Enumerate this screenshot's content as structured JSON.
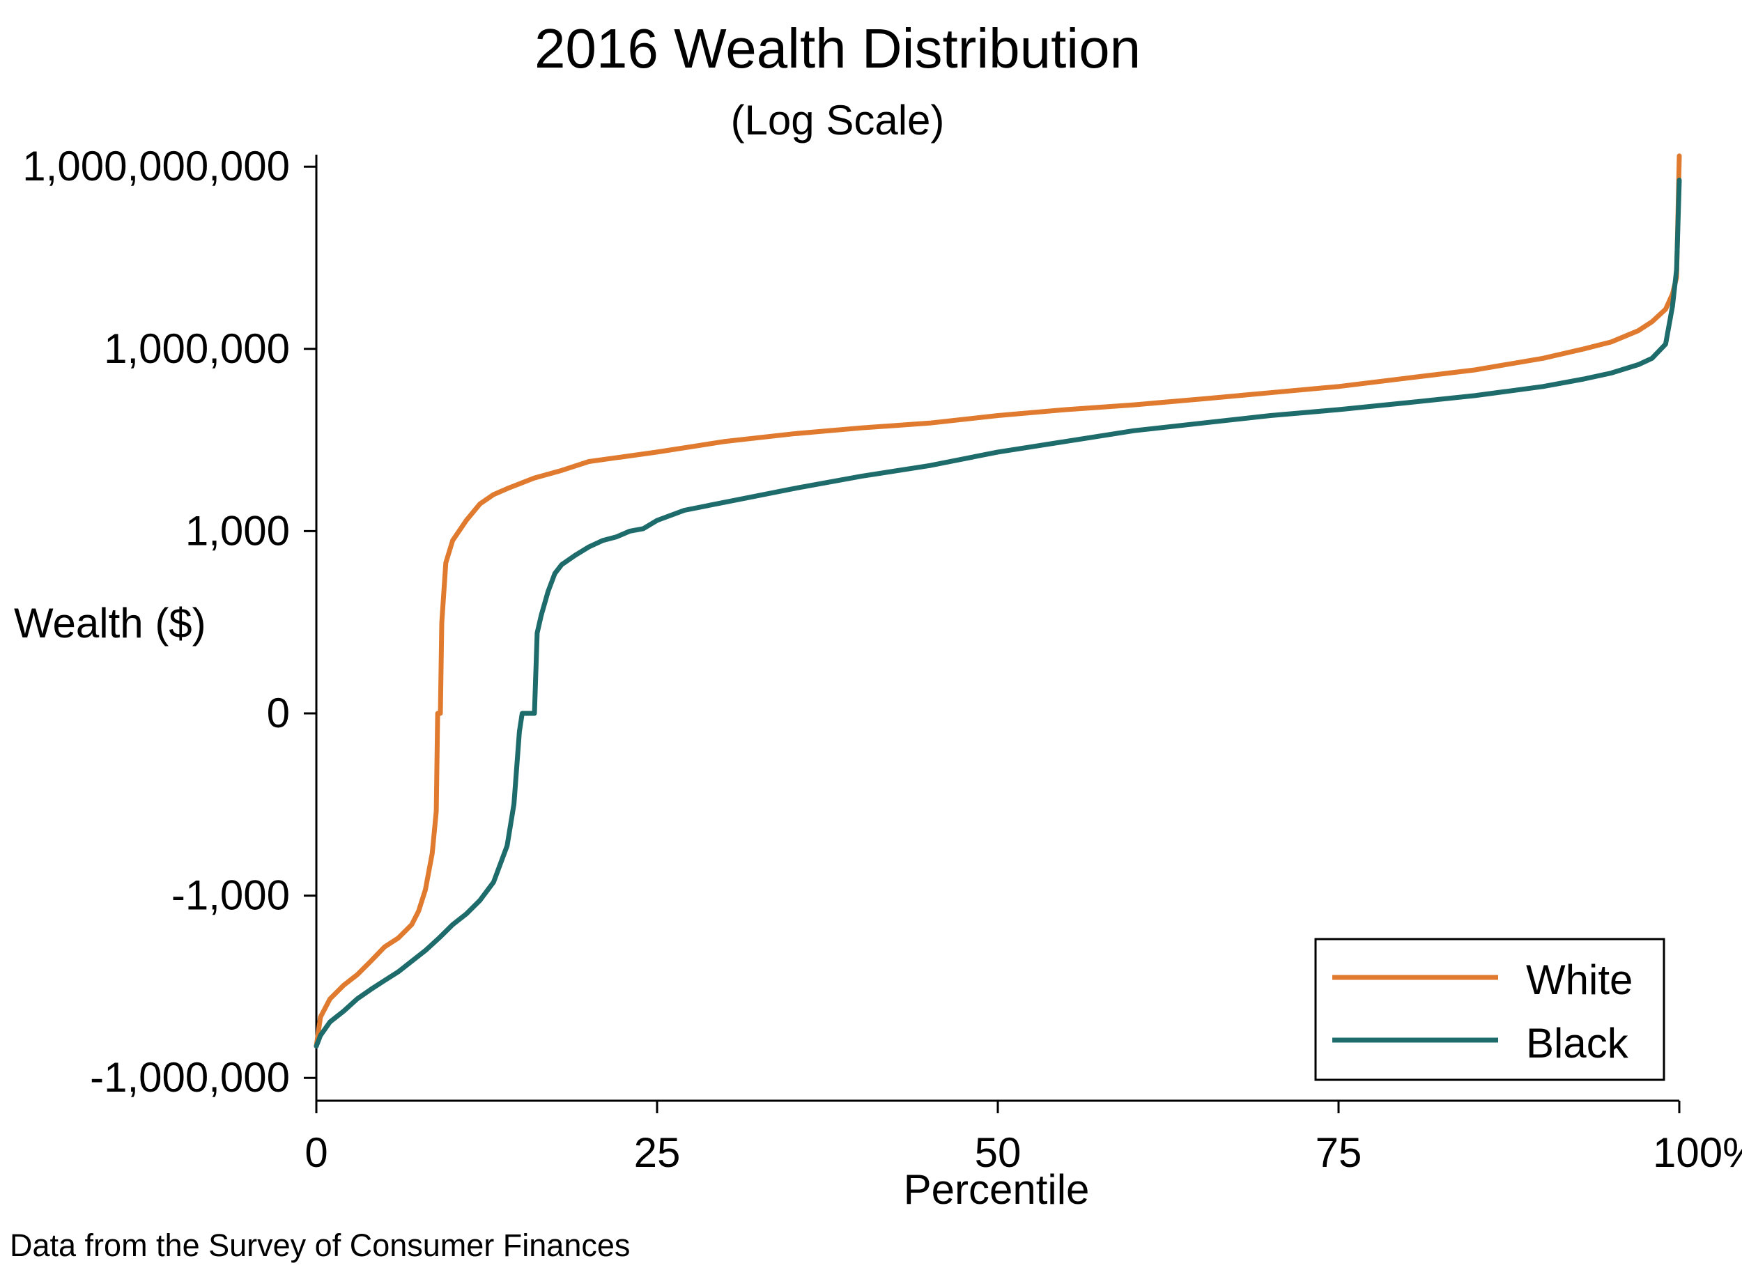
{
  "chart_data": {
    "type": "line",
    "title": "2016 Wealth Distribution",
    "subtitle": "(Log Scale)",
    "xlabel": "Percentile",
    "ylabel": "Wealth ($)",
    "source_note": "Data from the Survey of Consumer Finances",
    "y_scale": "signed-log",
    "xlim": [
      0,
      100
    ],
    "ylim": [
      -3000000,
      3000000000
    ],
    "x_ticks": [
      {
        "value": 0,
        "label": "0"
      },
      {
        "value": 25,
        "label": "25"
      },
      {
        "value": 50,
        "label": "50"
      },
      {
        "value": 75,
        "label": "75"
      },
      {
        "value": 100,
        "label": "100%"
      }
    ],
    "y_ticks": [
      {
        "value": 1000000000,
        "label": "1,000,000,000"
      },
      {
        "value": 1000000,
        "label": "1,000,000"
      },
      {
        "value": 1000,
        "label": "1,000"
      },
      {
        "value": 0,
        "label": "0"
      },
      {
        "value": -1000,
        "label": "-1,000"
      },
      {
        "value": -1000000,
        "label": "-1,000,000"
      }
    ],
    "grid": false,
    "legend": {
      "position": "bottom-right"
    },
    "series": [
      {
        "name": "White",
        "color": "#e07a2f",
        "x": [
          0,
          0.3,
          1,
          2,
          3,
          4,
          5,
          6,
          7,
          7.5,
          8,
          8.5,
          8.8,
          8.9,
          9.1,
          9.2,
          9.5,
          10,
          11,
          12,
          13,
          14,
          16,
          18,
          20,
          25,
          30,
          35,
          40,
          45,
          50,
          55,
          60,
          65,
          70,
          75,
          80,
          85,
          90,
          93,
          95,
          97,
          98,
          99,
          99.5,
          99.8,
          100
        ],
        "y": [
          -300000,
          -100000,
          -50000,
          -30000,
          -20000,
          -12000,
          -7000,
          -5000,
          -3000,
          -1800,
          -800,
          -200,
          -40,
          0,
          0,
          30,
          300,
          700,
          1500,
          2800,
          4000,
          5000,
          7500,
          10000,
          14000,
          20000,
          30000,
          40000,
          50000,
          60000,
          80000,
          100000,
          120000,
          150000,
          190000,
          240000,
          330000,
          450000,
          700000,
          1000000,
          1300000,
          2000000,
          2800000,
          4500000,
          8000000,
          15000000,
          1500000000
        ]
      },
      {
        "name": "Black",
        "color": "#1e6b6b",
        "x": [
          0,
          0.3,
          1,
          2,
          3,
          4,
          5,
          6,
          7,
          8,
          9,
          10,
          11,
          12,
          13,
          14,
          14.5,
          14.9,
          15.1,
          16,
          16.2,
          16.5,
          17,
          17.5,
          18,
          19,
          20,
          21,
          22,
          23,
          24,
          25,
          27,
          30,
          35,
          40,
          45,
          50,
          55,
          60,
          65,
          70,
          75,
          80,
          85,
          90,
          93,
          95,
          97,
          98,
          99,
          99.5,
          99.8,
          100
        ],
        "y": [
          -300000,
          -200000,
          -120000,
          -80000,
          -50000,
          -35000,
          -25000,
          -18000,
          -12000,
          -8000,
          -5000,
          -3000,
          -2000,
          -1200,
          -600,
          -150,
          -30,
          -1,
          0,
          0,
          20,
          40,
          100,
          200,
          280,
          400,
          550,
          700,
          800,
          1000,
          1100,
          1500,
          2200,
          3000,
          5000,
          8000,
          12000,
          20000,
          30000,
          45000,
          60000,
          80000,
          100000,
          130000,
          170000,
          240000,
          320000,
          400000,
          550000,
          700000,
          1200000,
          5000000,
          20000000,
          600000000
        ]
      }
    ]
  }
}
